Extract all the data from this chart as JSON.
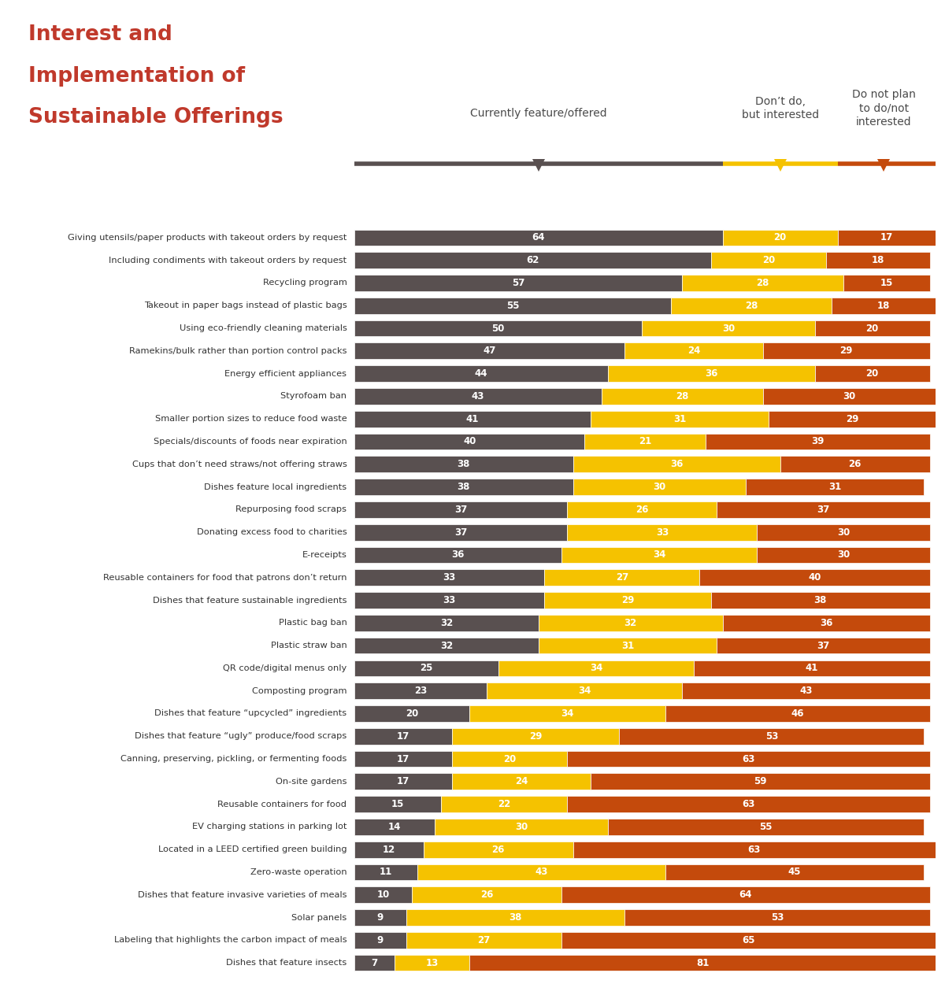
{
  "title_lines": [
    "Interest and",
    "Implementation of",
    "Sustainable Offerings"
  ],
  "title_color": "#C0392B",
  "col_header1": "Currently feature/offered",
  "col_header2": "Don’t do,\nbut interested",
  "col_header3": "Do not plan\nto do/not\ninterested",
  "col_header_color": "#4a4a4a",
  "bar_colors": [
    "#595050",
    "#F5C200",
    "#C44A0C"
  ],
  "categories": [
    "Giving utensils/paper products with takeout orders by request",
    "Including condiments with takeout orders by request",
    "Recycling program",
    "Takeout in paper bags instead of plastic bags",
    "Using eco-friendly cleaning materials",
    "Ramekins/bulk rather than portion control packs",
    "Energy efficient appliances",
    "Styrofoam ban",
    "Smaller portion sizes to reduce food waste",
    "Specials/discounts of foods near expiration",
    "Cups that don’t need straws/not offering straws",
    "Dishes feature local ingredients",
    "Repurposing food scraps",
    "Donating excess food to charities",
    "E-receipts",
    "Reusable containers for food that patrons don’t return",
    "Dishes that feature sustainable ingredients",
    "Plastic bag ban",
    "Plastic straw ban",
    "QR code/digital menus only",
    "Composting program",
    "Dishes that feature “upcycled” ingredients",
    "Dishes that feature “ugly” produce/food scraps",
    "Canning, preserving, pickling, or fermenting foods",
    "On-site gardens",
    "Reusable containers for food",
    "EV charging stations in parking lot",
    "Located in a LEED certified green building",
    "Zero-waste operation",
    "Dishes that feature invasive varieties of meals",
    "Solar panels",
    "Labeling that highlights the carbon impact of meals",
    "Dishes that feature insects"
  ],
  "values": [
    [
      64,
      20,
      17
    ],
    [
      62,
      20,
      18
    ],
    [
      57,
      28,
      15
    ],
    [
      55,
      28,
      18
    ],
    [
      50,
      30,
      20
    ],
    [
      47,
      24,
      29
    ],
    [
      44,
      36,
      20
    ],
    [
      43,
      28,
      30
    ],
    [
      41,
      31,
      29
    ],
    [
      40,
      21,
      39
    ],
    [
      38,
      36,
      26
    ],
    [
      38,
      30,
      31
    ],
    [
      37,
      26,
      37
    ],
    [
      37,
      33,
      30
    ],
    [
      36,
      34,
      30
    ],
    [
      33,
      27,
      40
    ],
    [
      33,
      29,
      38
    ],
    [
      32,
      32,
      36
    ],
    [
      32,
      31,
      37
    ],
    [
      25,
      34,
      41
    ],
    [
      23,
      34,
      43
    ],
    [
      20,
      34,
      46
    ],
    [
      17,
      29,
      53
    ],
    [
      17,
      20,
      63
    ],
    [
      17,
      24,
      59
    ],
    [
      15,
      22,
      63
    ],
    [
      14,
      30,
      55
    ],
    [
      12,
      26,
      63
    ],
    [
      11,
      43,
      45
    ],
    [
      10,
      26,
      64
    ],
    [
      9,
      38,
      53
    ],
    [
      9,
      27,
      65
    ],
    [
      7,
      13,
      81
    ]
  ],
  "figsize": [
    12.0,
    12.5
  ],
  "dpi": 100
}
